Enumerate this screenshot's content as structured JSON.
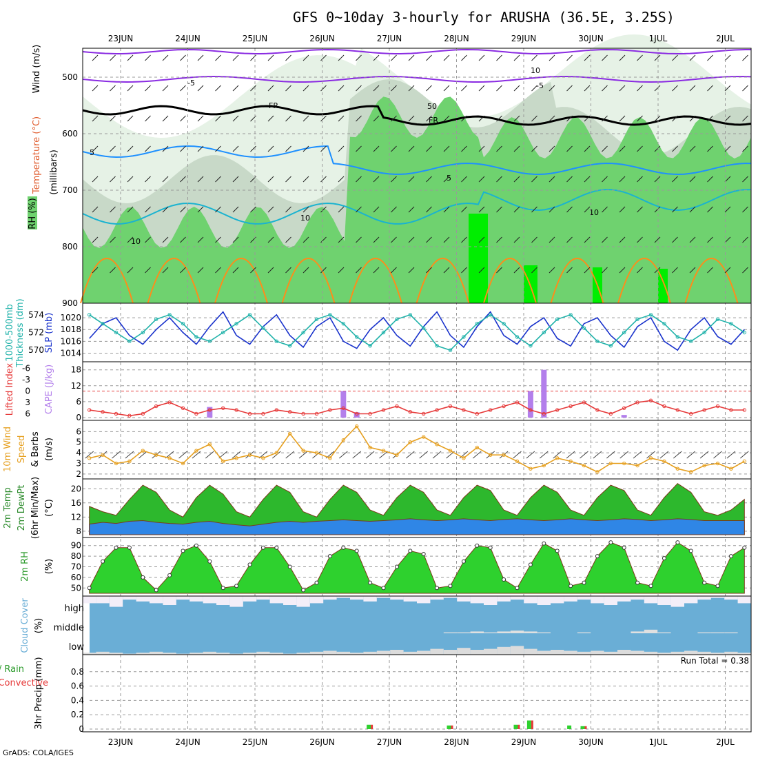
{
  "title": "GFS 0~10day 3-hourly for ARUSHA (36.5E, 3.25S)",
  "credit": "GrADS: COLA/IGES",
  "dates": [
    "23JUN",
    "24JUN",
    "25JUN",
    "26JUN",
    "27JUN",
    "28JUN",
    "29JUN",
    "30JUN",
    "1JUL",
    "2JUL"
  ],
  "colors": {
    "rh_light": "#e6f2e6",
    "rh_mid": "#c8d9c8",
    "rh_green": "#6fd26f",
    "rh_bright": "#00ee00",
    "temp_purple": "#8a2be2",
    "temp_blue": "#1e90ff",
    "temp_cyan": "#1ab3d0",
    "temp_orange": "#ff8c1a",
    "slp": "#1a33cc",
    "thick": "#20b2aa",
    "cape": "#b37feb",
    "li": "#e63939",
    "wind10": "#e6a020",
    "temp2m": "#2db82d",
    "dew2m": "#2f86e6",
    "rh2m": "#2ed12e",
    "cloud": "#6aaed6",
    "rain": "#2ed12e",
    "conv": "#e63939"
  },
  "panels": {
    "upper": {
      "labels": [
        "Wind (m/s)",
        "Temperature (°C)",
        "RH (%)",
        "(millibars)"
      ],
      "yticks": [
        "500",
        "600",
        "700",
        "800",
        "900"
      ],
      "contour_labels": [
        "-5",
        "-5",
        "FR",
        "FR",
        "5",
        "5",
        "10",
        "10",
        "10",
        "10",
        "50",
        "10"
      ]
    },
    "slp": {
      "labels": [
        "1000-500mb",
        "Thickness (dm)",
        "SLP (mb)"
      ],
      "left_ticks": [
        "574",
        "572",
        "570"
      ],
      "right_ticks": [
        "1020",
        "1018",
        "1016",
        "1014"
      ]
    },
    "cape": {
      "labels": [
        "Lifted Index",
        "CAPE (J/kg)"
      ],
      "left_ticks": [
        "-6",
        "-3",
        "0",
        "3",
        "6"
      ],
      "right_ticks": [
        "18",
        "12",
        "6",
        "0"
      ]
    },
    "wind10": {
      "labels": [
        "10m Wind",
        "Speed",
        "& Barbs",
        "(m/s)"
      ],
      "ticks": [
        "6",
        "5",
        "4",
        "3",
        "2"
      ]
    },
    "temp2m": {
      "labels": [
        "2m Temp",
        "2m DewPt",
        "(6hr Min/Max)",
        "(°C)"
      ],
      "ticks": [
        "20",
        "16",
        "12",
        "8"
      ]
    },
    "rh2m": {
      "labels": [
        "2m RH",
        "(%)"
      ],
      "ticks": [
        "90",
        "80",
        "70",
        "60",
        "50"
      ]
    },
    "cloud": {
      "labels": [
        "Cloud Cover",
        "(%)"
      ],
      "levels": [
        "high",
        "middle",
        "low"
      ]
    },
    "precip": {
      "labels": [
        "Total / Rain",
        "Convective",
        "3hr Precip (mm)"
      ],
      "ticks": [
        "0.8",
        "0.6",
        "0.4",
        "0.2",
        "0"
      ],
      "run_total": "Run Total = 0.38"
    }
  },
  "chart_data": [
    {
      "type": "line",
      "name": "slp_thickness",
      "x_start": "22JUN 12Z",
      "x_step_hours": 6,
      "series": [
        {
          "name": "SLP (mb)",
          "values": [
            1016.5,
            1019,
            1020,
            1017,
            1015.5,
            1018,
            1020,
            1017.5,
            1015.5,
            1018.5,
            1021,
            1017,
            1015.5,
            1018.5,
            1020.5,
            1017,
            1015,
            1018.5,
            1020,
            1016,
            1014.8,
            1018,
            1020,
            1017,
            1015.2,
            1018.5,
            1021,
            1017,
            1015,
            1018.5,
            1021,
            1017,
            1015.5,
            1018.5,
            1020,
            1016.5,
            1015.2,
            1019,
            1020,
            1017,
            1015,
            1018.5,
            1020,
            1016,
            1014.5,
            1018,
            1020,
            1016.8,
            1015.5,
            1018
          ]
        },
        {
          "name": "1000-500mb Thickness (dm)",
          "values": [
            574,
            573,
            572,
            571,
            572,
            573.5,
            574,
            573,
            571.5,
            571,
            572,
            573,
            574,
            572.5,
            571,
            570.5,
            572,
            573.5,
            574,
            573,
            571.5,
            570.5,
            572,
            573.5,
            574,
            572.5,
            570.5,
            570,
            571.5,
            573,
            574,
            573,
            571.5,
            570.5,
            572,
            573.5,
            574,
            572.5,
            571,
            570.5,
            572,
            573.5,
            574,
            573,
            571.5,
            571,
            572,
            573.5,
            573,
            572
          ]
        }
      ]
    },
    {
      "type": "bar",
      "name": "cape",
      "x_start": "22JUN 12Z",
      "x_step_hours": 6,
      "series": [
        {
          "name": "CAPE (J/kg)",
          "values": [
            0,
            0,
            0,
            0,
            0,
            0,
            0,
            0,
            0,
            4,
            0,
            0,
            0,
            0,
            0,
            0,
            0,
            0,
            0,
            10,
            2,
            0,
            0,
            0,
            0,
            0,
            0,
            0,
            0,
            0,
            0,
            0,
            0,
            10,
            18,
            0,
            0,
            0,
            0,
            0,
            1,
            0,
            0,
            0,
            0,
            0,
            0,
            0,
            0,
            0
          ]
        }
      ],
      "ylim": [
        0,
        20
      ]
    },
    {
      "type": "line",
      "name": "lifted_index",
      "series": [
        {
          "name": "Lifted Index",
          "values": [
            5,
            5.5,
            6,
            6.5,
            6,
            4,
            3,
            4.5,
            6,
            5,
            4.5,
            5,
            6,
            6,
            5,
            5.5,
            6,
            6,
            5,
            4.5,
            6,
            6,
            5,
            4,
            5.5,
            6,
            5,
            4,
            5,
            6,
            5,
            4,
            3,
            5,
            6,
            5,
            4,
            3,
            5,
            6,
            4.5,
            3,
            2.5,
            4,
            5,
            6,
            5,
            4,
            5,
            5
          ]
        }
      ],
      "ylim": [
        6,
        -6
      ]
    },
    {
      "type": "line",
      "name": "wind10m",
      "series": [
        {
          "name": "10m Wind Speed (m/s)",
          "values": [
            3.5,
            3.8,
            3,
            3.2,
            4.2,
            3.8,
            3.5,
            3,
            4.2,
            4.8,
            3.2,
            3.5,
            3.8,
            3.5,
            4,
            5.8,
            4.2,
            4,
            3.5,
            5.2,
            6.5,
            4.5,
            4.2,
            3.8,
            5,
            5.5,
            4.8,
            4.2,
            3.5,
            4.5,
            3.8,
            3.8,
            3.2,
            2.5,
            2.8,
            3.5,
            3.2,
            2.8,
            2.2,
            3,
            3,
            2.8,
            3.5,
            3.2,
            2.5,
            2.2,
            2.8,
            3,
            2.5,
            3.2
          ]
        }
      ],
      "ylim": [
        1.8,
        6.8
      ]
    },
    {
      "type": "area",
      "name": "temp2m",
      "series": [
        {
          "name": "2m Temp (°C)",
          "values": [
            15,
            13.5,
            12.5,
            17,
            21,
            19,
            14,
            12,
            17.5,
            21,
            18.5,
            13.5,
            12,
            17,
            21,
            19,
            13.5,
            12,
            17,
            21,
            19,
            14,
            12.5,
            17.5,
            21,
            19,
            14,
            12.5,
            17.5,
            21,
            19.5,
            14,
            12.5,
            17.5,
            21,
            19,
            14,
            12.5,
            17.5,
            21,
            19.5,
            14,
            12.5,
            17.5,
            21.5,
            19,
            13.5,
            12.5,
            14,
            17
          ]
        },
        {
          "name": "2m DewPt (°C)",
          "values": [
            10,
            10.5,
            10.2,
            10.8,
            11,
            10.5,
            10.2,
            10,
            10.5,
            10.8,
            10.2,
            9.8,
            9.5,
            10,
            10.5,
            10.8,
            10.5,
            10.8,
            11,
            11.2,
            11,
            10.8,
            11,
            11.2,
            11.5,
            11.2,
            11,
            11.2,
            11.5,
            11.2,
            11,
            11.3,
            11.5,
            11.2,
            11,
            11.2,
            11.5,
            11.2,
            11,
            11.2,
            11.5,
            11.3,
            11,
            11.2,
            11.5,
            11.3,
            11,
            11,
            11,
            11
          ]
        }
      ],
      "ylim": [
        7,
        22
      ]
    },
    {
      "type": "area",
      "name": "rh2m",
      "series": [
        {
          "name": "2m RH (%)",
          "values": [
            50,
            75,
            88,
            88,
            60,
            48,
            62,
            85,
            90,
            75,
            50,
            52,
            72,
            88,
            88,
            70,
            48,
            55,
            80,
            88,
            85,
            55,
            50,
            70,
            85,
            82,
            50,
            52,
            75,
            90,
            88,
            58,
            50,
            72,
            92,
            85,
            52,
            55,
            80,
            93,
            88,
            55,
            52,
            78,
            93,
            85,
            55,
            52,
            80,
            88
          ]
        }
      ],
      "ylim": [
        45,
        95
      ]
    },
    {
      "type": "bar",
      "name": "cloud_cover",
      "series": [
        {
          "name": "high",
          "values": [
            60,
            60,
            40,
            80,
            70,
            60,
            50,
            80,
            70,
            60,
            50,
            40,
            70,
            80,
            60,
            50,
            40,
            60,
            80,
            90,
            80,
            70,
            90,
            80,
            70,
            60,
            80,
            90,
            70,
            60,
            50,
            70,
            80,
            60,
            50,
            60,
            70,
            80,
            60,
            50,
            70,
            80,
            60,
            50,
            40,
            60,
            80,
            90,
            80,
            60
          ]
        },
        {
          "name": "middle",
          "values": [
            0,
            0,
            0,
            0,
            0,
            0,
            0,
            0,
            0,
            0,
            0,
            0,
            0,
            0,
            0,
            0,
            0,
            0,
            0,
            0,
            0,
            0,
            0,
            0,
            0,
            0,
            0,
            5,
            5,
            10,
            5,
            10,
            15,
            10,
            5,
            0,
            0,
            5,
            0,
            0,
            0,
            10,
            20,
            5,
            0,
            0,
            5,
            5,
            5,
            0
          ]
        },
        {
          "name": "low",
          "values": [
            10,
            15,
            10,
            5,
            10,
            15,
            10,
            5,
            10,
            15,
            10,
            5,
            10,
            15,
            10,
            5,
            10,
            15,
            20,
            15,
            10,
            15,
            20,
            25,
            15,
            20,
            30,
            25,
            35,
            25,
            30,
            40,
            45,
            30,
            20,
            25,
            20,
            15,
            20,
            15,
            25,
            20,
            15,
            10,
            15,
            20,
            15,
            10,
            15,
            10
          ]
        }
      ]
    },
    {
      "type": "bar",
      "name": "precip",
      "series": [
        {
          "name": "Total / Rain (mm)",
          "values": [
            0,
            0,
            0,
            0,
            0,
            0,
            0,
            0,
            0,
            0,
            0,
            0,
            0,
            0,
            0,
            0,
            0,
            0,
            0,
            0,
            0,
            0.06,
            0,
            0,
            0,
            0,
            0,
            0.05,
            0,
            0,
            0,
            0,
            0.06,
            0.12,
            0,
            0,
            0.05,
            0.04,
            0,
            0,
            0,
            0,
            0,
            0,
            0,
            0,
            0,
            0,
            0,
            0
          ]
        },
        {
          "name": "Convective (mm)",
          "values": [
            0,
            0,
            0,
            0,
            0,
            0,
            0,
            0,
            0,
            0,
            0,
            0,
            0,
            0,
            0,
            0,
            0,
            0,
            0,
            0,
            0,
            0.06,
            0,
            0,
            0,
            0,
            0,
            0.05,
            0,
            0,
            0,
            0,
            0.06,
            0.12,
            0,
            0,
            0,
            0.04,
            0,
            0,
            0,
            0,
            0,
            0,
            0,
            0,
            0,
            0,
            0,
            0
          ]
        }
      ],
      "ylim": [
        0,
        1
      ]
    }
  ]
}
